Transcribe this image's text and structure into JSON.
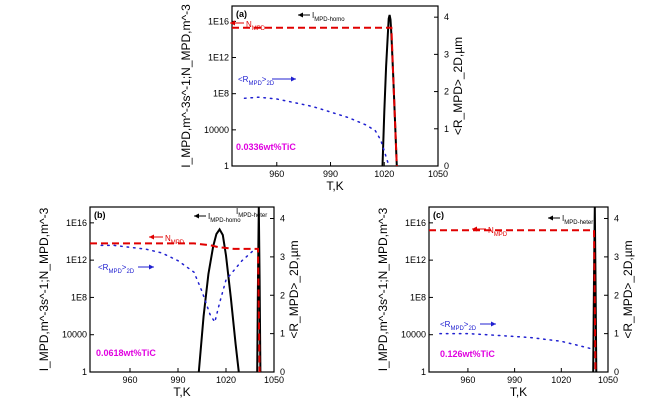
{
  "chart_data": [
    {
      "panel": "(a)",
      "type": "line",
      "concentration": "0.0336wt%TiC",
      "xlabel": "T,K",
      "ylabel_left": "I_MPD,m^-3s^-1;N_MPD,m^-3",
      "ylabel_right": "<R_MPD>_2D,µm",
      "xticks": [
        "960",
        "990",
        "1020",
        "1050"
      ],
      "yticks_left": [
        "1",
        "10000",
        "1E8",
        "1E12",
        "1E16"
      ],
      "yticks_right": [
        "0",
        "1",
        "2",
        "3",
        "4"
      ],
      "xlim": [
        935,
        1050
      ],
      "ylim_left_log10": [
        0,
        17.7
      ],
      "ylim_right": [
        0,
        4.3
      ],
      "series": [
        {
          "name": "I_MPD-homo",
          "axis": "left",
          "style": "solid-black",
          "x": [
            1019,
            1020,
            1021,
            1022,
            1022.5,
            1023,
            1023.5,
            1024,
            1025,
            1026,
            1027
          ],
          "y_log10": [
            0,
            6,
            11,
            14.5,
            16.3,
            16.7,
            16.2,
            14.5,
            10,
            5,
            0
          ]
        },
        {
          "name": "N_MPD",
          "axis": "left",
          "style": "dashed-red",
          "x": [
            935,
            1024,
            1025,
            1026,
            1027
          ],
          "y_log10": [
            15.3,
            15.3,
            10,
            5,
            0
          ]
        },
        {
          "name": "<R_MPD>_2D",
          "axis": "right",
          "style": "dotted-blue",
          "x": [
            942,
            950,
            960,
            970,
            980,
            990,
            1000,
            1010,
            1015,
            1018,
            1020,
            1022
          ],
          "y": [
            1.82,
            1.85,
            1.8,
            1.7,
            1.6,
            1.45,
            1.3,
            1.1,
            0.95,
            0.7,
            0.4,
            0.1
          ]
        }
      ],
      "labels": {
        "homo": "I",
        "homo_sub": "MPD-homo",
        "n": "N",
        "n_sub": "MPD",
        "r": "<R",
        "r_sub": "MPD",
        "r_end": ">",
        "r_sub2": "2D"
      }
    },
    {
      "panel": "(b)",
      "type": "line",
      "concentration": "0.0618wt%TiC",
      "xlabel": "T,K",
      "ylabel_left": "I_MPD,m^-3s^-1;N_MPD,m^-3",
      "ylabel_right": "<R_MPD>_2D,µm",
      "xticks": [
        "960",
        "990",
        "1020",
        "1050"
      ],
      "yticks_left": [
        "1",
        "10000",
        "1E8",
        "1E12",
        "1E16"
      ],
      "yticks_right": [
        "0",
        "1",
        "2",
        "3",
        "4"
      ],
      "xlim": [
        935,
        1050
      ],
      "ylim_left_log10": [
        0,
        17.7
      ],
      "ylim_right": [
        0,
        4.3
      ],
      "series": [
        {
          "name": "I_MPD-homo",
          "axis": "left",
          "style": "solid-black",
          "x": [
            1003,
            1006,
            1009,
            1012,
            1014,
            1016,
            1018,
            1020,
            1023,
            1026,
            1028
          ],
          "y_log10": [
            0,
            6,
            10.5,
            13.5,
            14.8,
            15.3,
            14.7,
            12.5,
            8,
            3,
            0
          ]
        },
        {
          "name": "I_MPD-heter",
          "axis": "left",
          "style": "solid-black",
          "x": [
            1039.5,
            1040,
            1040.5,
            1041,
            1041.5
          ],
          "y_log10": [
            0,
            10,
            17.7,
            10,
            0
          ]
        },
        {
          "name": "N_MPD",
          "axis": "left",
          "style": "dashed-red",
          "x": [
            935,
            1000,
            1010,
            1015,
            1025,
            1040,
            1041
          ],
          "y_log10": [
            13.8,
            13.8,
            13.6,
            13.4,
            13.2,
            13.2,
            0
          ]
        },
        {
          "name": "<R_MPD>_2D",
          "axis": "right",
          "style": "dotted-blue",
          "x": [
            942,
            950,
            960,
            970,
            980,
            990,
            1000,
            1005,
            1010,
            1013,
            1016,
            1020,
            1030,
            1038
          ],
          "y": [
            3.3,
            3.3,
            3.25,
            3.2,
            3.1,
            2.9,
            2.6,
            2.1,
            1.5,
            1.3,
            1.8,
            2.4,
            2.9,
            3.2
          ]
        }
      ],
      "labels": {
        "homo": "I",
        "homo_sub": "MPD-homo",
        "heter": "I",
        "heter_sub": "MPD-heter",
        "n": "N",
        "n_sub": "MPD",
        "r": "<R",
        "r_sub": "MPD",
        "r_end": ">",
        "r_sub2": "2D"
      }
    },
    {
      "panel": "(c)",
      "type": "line",
      "concentration": "0.126wt%TiC",
      "xlabel": "T,K",
      "ylabel_left": "I_MPD,m^-3s^-1;N_MPD,m^-3",
      "ylabel_right": "<R_MPD>_2D,µm",
      "xticks": [
        "960",
        "990",
        "1020",
        "1050"
      ],
      "yticks_left": [
        "1",
        "10000",
        "1E8",
        "1E12",
        "1E16"
      ],
      "yticks_right": [
        "0",
        "1",
        "2",
        "3",
        "4"
      ],
      "xlim": [
        935,
        1050
      ],
      "ylim_left_log10": [
        0,
        17.7
      ],
      "ylim_right": [
        0,
        4.3
      ],
      "series": [
        {
          "name": "I_MPD-heter",
          "axis": "left",
          "style": "solid-black",
          "x": [
            1040.5,
            1041,
            1041.5,
            1042,
            1042.5
          ],
          "y_log10": [
            0,
            10,
            17.7,
            10,
            0
          ]
        },
        {
          "name": "N_MPD",
          "axis": "left",
          "style": "dashed-red",
          "x": [
            935,
            1041,
            1042
          ],
          "y_log10": [
            15.2,
            15.2,
            0
          ]
        },
        {
          "name": "<R_MPD>_2D",
          "axis": "right",
          "style": "dotted-blue",
          "x": [
            942,
            960,
            980,
            1000,
            1020,
            1030,
            1040
          ],
          "y": [
            1.0,
            1.0,
            0.95,
            0.9,
            0.8,
            0.7,
            0.6
          ]
        }
      ],
      "labels": {
        "heter": "I",
        "heter_sub": "MPD-heter",
        "n": "N",
        "n_sub": "MPD",
        "r": "<R",
        "r_sub": "MPD",
        "r_end": ">",
        "r_sub2": "2D"
      }
    }
  ],
  "colors": {
    "homo": "#000000",
    "n": "#e00000",
    "r": "#2020d0",
    "conc": "#e000e0"
  }
}
